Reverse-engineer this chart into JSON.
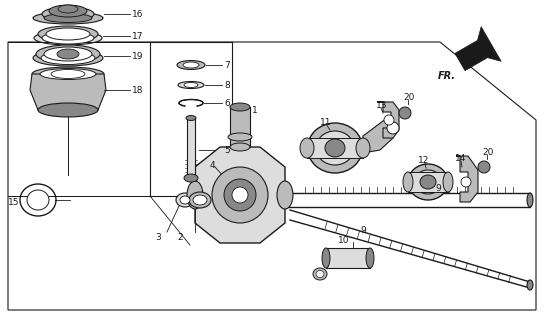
{
  "bg_color": "#ffffff",
  "dk": "#1a1a1a",
  "gray1": "#bbbbbb",
  "gray2": "#888888",
  "gray3": "#dddddd"
}
